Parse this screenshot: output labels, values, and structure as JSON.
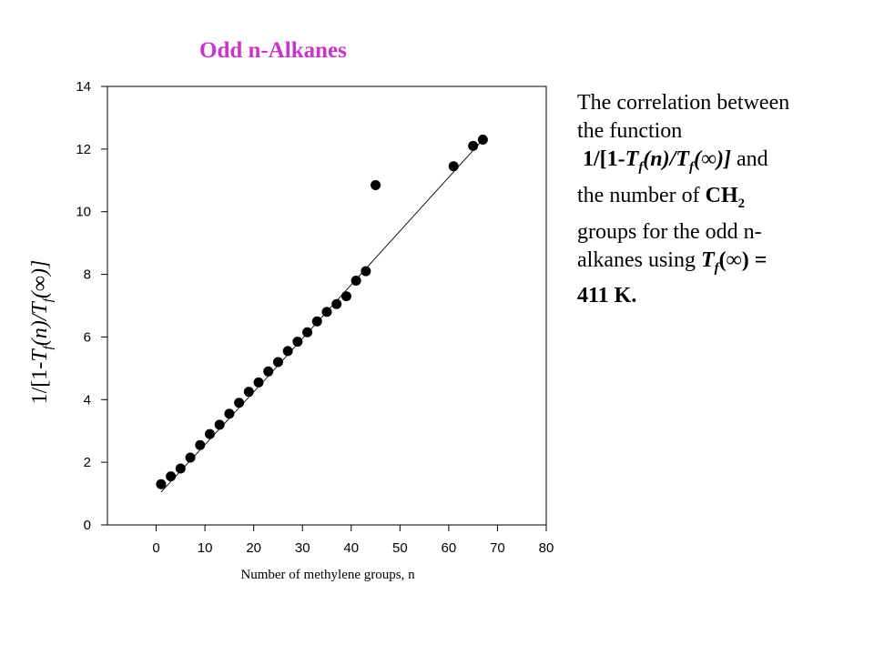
{
  "chart_data": {
    "type": "scatter",
    "title": "Odd n-Alkanes",
    "xlabel": "Number of methylene groups, n",
    "ylabel": {
      "prefix": "1/[1-",
      "T1": "T",
      "sub1": "f",
      "mid": "(n)/",
      "T2": "T",
      "sub2": "f",
      "suffix": "(∞)]"
    },
    "xlim": [
      -10,
      80
    ],
    "ylim": [
      0,
      14
    ],
    "xticks": [
      "0",
      "10",
      "20",
      "30",
      "40",
      "50",
      "60",
      "70",
      "80"
    ],
    "yticks": [
      "0",
      "2",
      "4",
      "6",
      "8",
      "10",
      "12",
      "14"
    ],
    "xtick_values": [
      0,
      10,
      20,
      30,
      40,
      50,
      60,
      70,
      80
    ],
    "ytick_values": [
      0,
      2,
      4,
      6,
      8,
      10,
      12,
      14
    ],
    "grid": false,
    "legend": "none",
    "series": [
      {
        "marker_color": "#000000",
        "points": [
          [
            1,
            1.3
          ],
          [
            3,
            1.55
          ],
          [
            5,
            1.8
          ],
          [
            7,
            2.15
          ],
          [
            9,
            2.55
          ],
          [
            11,
            2.9
          ],
          [
            13,
            3.2
          ],
          [
            15,
            3.55
          ],
          [
            17,
            3.9
          ],
          [
            19,
            4.25
          ],
          [
            21,
            4.55
          ],
          [
            23,
            4.9
          ],
          [
            25,
            5.2
          ],
          [
            27,
            5.55
          ],
          [
            29,
            5.85
          ],
          [
            31,
            6.15
          ],
          [
            33,
            6.5
          ],
          [
            35,
            6.8
          ],
          [
            37,
            7.05
          ],
          [
            39,
            7.3
          ],
          [
            41,
            7.8
          ],
          [
            43,
            8.1
          ],
          [
            45,
            10.85
          ],
          [
            61,
            11.45
          ],
          [
            65,
            12.1
          ],
          [
            67,
            12.3
          ]
        ]
      }
    ],
    "fit_line": [
      [
        1,
        1.05
      ],
      [
        23,
        4.75
      ],
      [
        67,
        12.3
      ]
    ],
    "fit_line_color": "#000000",
    "title_color": "#cc33cc"
  },
  "caption": {
    "line1": "The correlation between",
    "line2": "the function",
    "f_prefix": "1/[1-",
    "f_T1": "T",
    "f_sub1": "f",
    "f_mid": "(n)/",
    "f_T2": "T",
    "f_sub2": "f",
    "f_suffix": "(∞)]",
    "and_text": " and",
    "line4": "the number of ",
    "ch": "CH",
    "ch_sub": "2",
    "line5": "groups for the odd n-",
    "line6": "alkanes using ",
    "t_T": "T",
    "t_sub": "f",
    "t_rest": "(∞) =",
    "line7": "411 K."
  }
}
